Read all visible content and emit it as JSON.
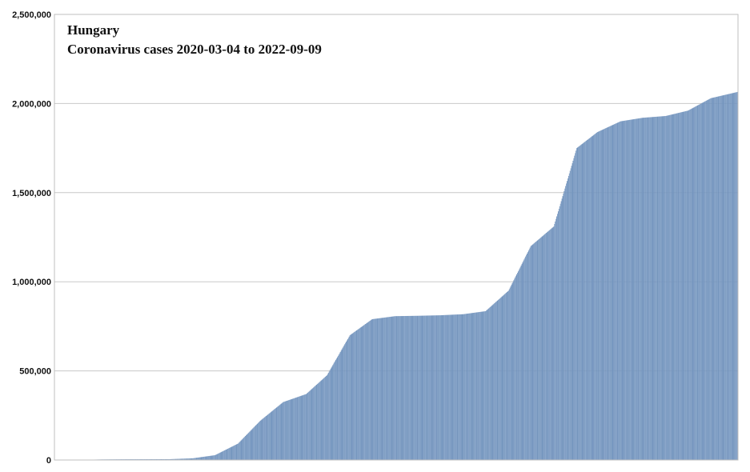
{
  "chart_data": {
    "type": "bar",
    "title": "Hungary",
    "subtitle": "Coronavirus cases 2020-03-04 to 2022-09-09",
    "x_start": "2020-03-04",
    "x_end": "2022-09-09",
    "ylim": [
      0,
      2500000
    ],
    "yticks": [
      0,
      500000,
      1000000,
      1500000,
      2000000,
      2500000
    ],
    "ytick_labels": [
      "0",
      "500,000",
      "1,000,000",
      "1,500,000",
      "2,000,000",
      "2,500,000"
    ],
    "grid": true,
    "colors": {
      "bar": "#7f9fc6",
      "bar_edge": "#6b8db8",
      "grid": "#c8c8c8",
      "frame": "#bfbfbf"
    },
    "series": [
      {
        "values": [
          {
            "x": "2020-03-04",
            "y": 0
          },
          {
            "x": "2020-04-04",
            "y": 600
          },
          {
            "x": "2020-05-04",
            "y": 3100
          },
          {
            "x": "2020-06-04",
            "y": 3900
          },
          {
            "x": "2020-07-04",
            "y": 4200
          },
          {
            "x": "2020-08-04",
            "y": 4600
          },
          {
            "x": "2020-09-04",
            "y": 9500
          },
          {
            "x": "2020-10-04",
            "y": 27000
          },
          {
            "x": "2020-11-04",
            "y": 92000
          },
          {
            "x": "2020-12-04",
            "y": 220000
          },
          {
            "x": "2021-01-04",
            "y": 325000
          },
          {
            "x": "2021-02-04",
            "y": 370000
          },
          {
            "x": "2021-03-04",
            "y": 475000
          },
          {
            "x": "2021-04-04",
            "y": 700000
          },
          {
            "x": "2021-05-04",
            "y": 790000
          },
          {
            "x": "2021-06-04",
            "y": 807000
          },
          {
            "x": "2021-07-04",
            "y": 809000
          },
          {
            "x": "2021-08-04",
            "y": 812000
          },
          {
            "x": "2021-09-04",
            "y": 818000
          },
          {
            "x": "2021-10-04",
            "y": 835000
          },
          {
            "x": "2021-11-04",
            "y": 950000
          },
          {
            "x": "2021-12-04",
            "y": 1200000
          },
          {
            "x": "2022-01-04",
            "y": 1310000
          },
          {
            "x": "2022-02-04",
            "y": 1750000
          },
          {
            "x": "2022-03-04",
            "y": 1840000
          },
          {
            "x": "2022-04-04",
            "y": 1900000
          },
          {
            "x": "2022-05-04",
            "y": 1920000
          },
          {
            "x": "2022-06-04",
            "y": 1930000
          },
          {
            "x": "2022-07-04",
            "y": 1960000
          },
          {
            "x": "2022-08-04",
            "y": 2030000
          },
          {
            "x": "2022-09-09",
            "y": 2065000
          }
        ]
      }
    ]
  }
}
